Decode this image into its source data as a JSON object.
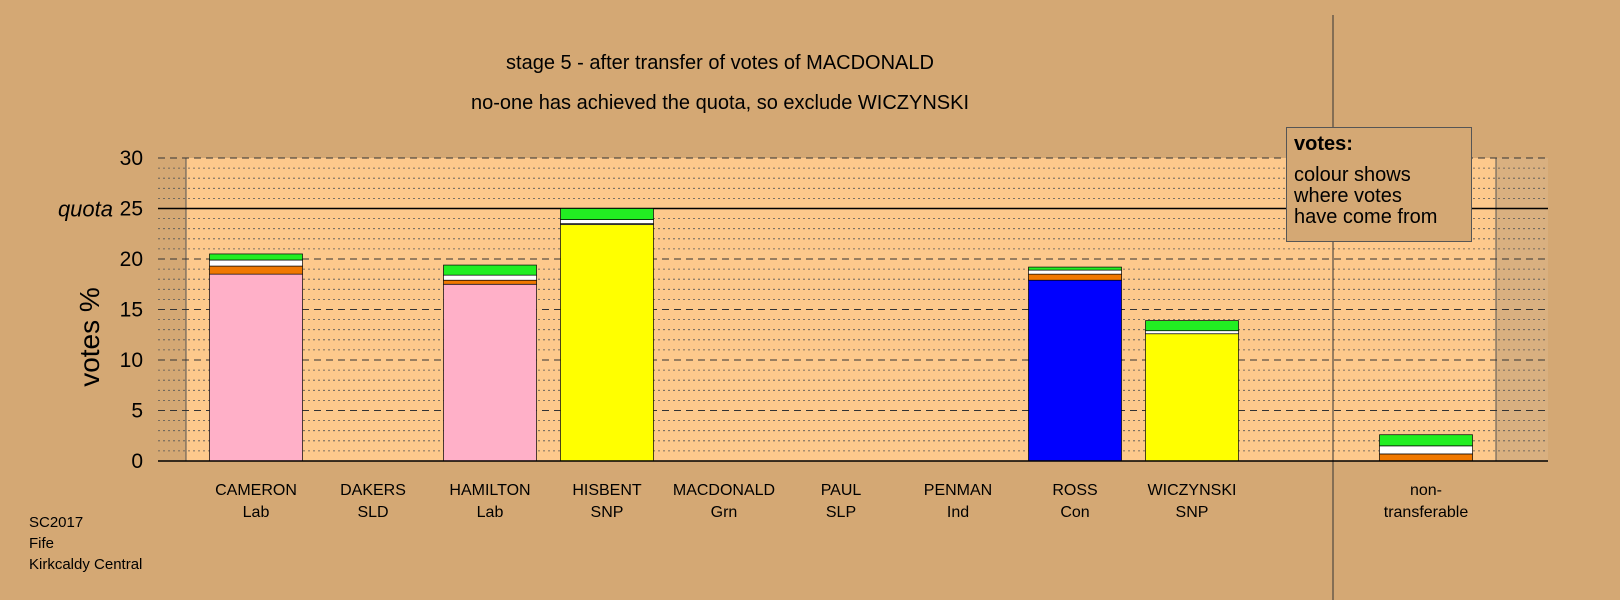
{
  "title": "stage 5 - after transfer of votes of MACDONALD",
  "subtitle": "no-one has achieved the quota, so exclude WICZYNSKI",
  "footer": [
    "SC2017",
    "Fife",
    "Kirkcaldy Central"
  ],
  "legend": {
    "title": "votes:",
    "lines": [
      "colour shows",
      "where votes",
      "have come from"
    ]
  },
  "colors": {
    "background": "#d4a874",
    "plot_area": "#fdc98c",
    "Lab": "#ffb0c8",
    "SNP": "#ffff00",
    "Con": "#0000ff",
    "orange_transfer": "#f07800",
    "white_transfer": "#ffffff",
    "green_transfer": "#22ee22",
    "grey_transfer": "#999999"
  },
  "chart_data": {
    "type": "bar",
    "stacked": true,
    "ylabel": "votes %",
    "ylim": [
      0,
      30
    ],
    "yticks": [
      0,
      5,
      10,
      15,
      20,
      25,
      30
    ],
    "quota": 25,
    "quota_label": "quota",
    "grid": true,
    "legend_position": "top-right",
    "candidates": [
      {
        "name": "CAMERON",
        "party": "Lab",
        "segments": [
          {
            "source": "Lab",
            "value": 18.5
          },
          {
            "source": "orange",
            "value": 0.8
          },
          {
            "source": "white",
            "value": 0.6
          },
          {
            "source": "green",
            "value": 0.6
          }
        ]
      },
      {
        "name": "DAKERS",
        "party": "SLD",
        "segments": []
      },
      {
        "name": "HAMILTON",
        "party": "Lab",
        "segments": [
          {
            "source": "Lab",
            "value": 17.5
          },
          {
            "source": "orange",
            "value": 0.4
          },
          {
            "source": "white",
            "value": 0.5
          },
          {
            "source": "green",
            "value": 1.0
          }
        ]
      },
      {
        "name": "HISBENT",
        "party": "SNP",
        "segments": [
          {
            "source": "SNP",
            "value": 23.4
          },
          {
            "source": "grey",
            "value": 0.1
          },
          {
            "source": "white",
            "value": 0.4
          },
          {
            "source": "green",
            "value": 1.1
          }
        ]
      },
      {
        "name": "MACDONALD",
        "party": "Grn",
        "segments": []
      },
      {
        "name": "PAUL",
        "party": "SLP",
        "segments": []
      },
      {
        "name": "PENMAN",
        "party": "Ind",
        "segments": []
      },
      {
        "name": "ROSS",
        "party": "Con",
        "segments": [
          {
            "source": "Con",
            "value": 17.9
          },
          {
            "source": "orange",
            "value": 0.6
          },
          {
            "source": "white",
            "value": 0.4
          },
          {
            "source": "green",
            "value": 0.3
          }
        ]
      },
      {
        "name": "WICZYNSKI",
        "party": "SNP",
        "segments": [
          {
            "source": "SNP",
            "value": 12.6
          },
          {
            "source": "white",
            "value": 0.3
          },
          {
            "source": "green",
            "value": 1.0
          }
        ]
      }
    ],
    "nontransferable": {
      "label_line1": "non-",
      "label_line2": "transferable",
      "segments": [
        {
          "source": "orange",
          "value": 0.7
        },
        {
          "source": "white",
          "value": 0.8
        },
        {
          "source": "green",
          "value": 1.1
        }
      ]
    }
  }
}
